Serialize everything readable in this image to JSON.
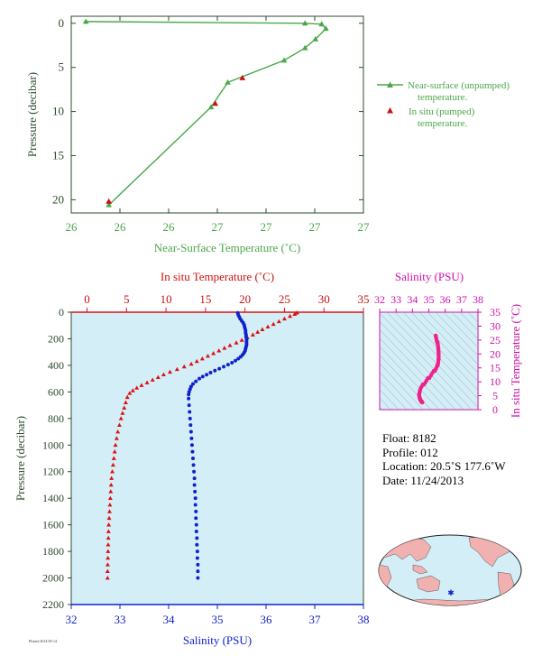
{
  "chart_data": [
    {
      "type": "line",
      "xlabel": "Near-Surface Temperature (˚C)",
      "ylabel": "Pressure (decibar)",
      "x_ticks": [
        "26",
        "26",
        "26",
        "27",
        "27",
        "27",
        "27"
      ],
      "y_ticks": [
        "0",
        "5",
        "10",
        "15",
        "20"
      ],
      "xlim": [
        25.8,
        27.2
      ],
      "ylim": [
        21.5,
        -0.8
      ],
      "legend_position": "right",
      "series": [
        {
          "name": "Near-surface (unpumped) temperature.",
          "color": "#4aa84a",
          "marker": "triangle",
          "points": [
            {
              "t": 25.98,
              "p": 20.6
            },
            {
              "t": 26.47,
              "p": 9.5
            },
            {
              "t": 26.55,
              "p": 6.7
            },
            {
              "t": 26.82,
              "p": 4.2
            },
            {
              "t": 26.92,
              "p": 2.8
            },
            {
              "t": 26.97,
              "p": 1.8
            },
            {
              "t": 27.02,
              "p": 0.6
            },
            {
              "t": 27.0,
              "p": 0.1
            },
            {
              "t": 26.92,
              "p": 0.0
            },
            {
              "t": 25.87,
              "p": -0.2
            }
          ]
        },
        {
          "name": "In situ (pumped) temperature.",
          "color": "#cc1111",
          "marker": "triangle",
          "points": [
            {
              "t": 25.98,
              "p": 20.2
            },
            {
              "t": 26.49,
              "p": 9.1
            },
            {
              "t": 26.62,
              "p": 6.2
            }
          ]
        }
      ]
    },
    {
      "type": "scatter",
      "xlabel_top": "In situ Temperature (˚C)",
      "xlabel_bottom": "Salinity (PSU)",
      "ylabel": "Pressure (decibar)",
      "temp_ticks": [
        "0",
        "5",
        "10",
        "15",
        "20",
        "25",
        "30",
        "35"
      ],
      "sal_ticks": [
        "32",
        "33",
        "34",
        "35",
        "36",
        "37",
        "38"
      ],
      "pressure_ticks": [
        "0",
        "200",
        "400",
        "600",
        "800",
        "1000",
        "1200",
        "1400",
        "1600",
        "1800",
        "2000",
        "2200"
      ],
      "temp_lim": [
        -2,
        35
      ],
      "sal_lim": [
        32,
        38
      ],
      "pressure_lim": [
        0,
        2200
      ],
      "background": "#d4eef7",
      "series": [
        {
          "name": "temperature",
          "color": "#dd1111",
          "marker": "triangle",
          "pressure": [
            5,
            15,
            30,
            50,
            70,
            90,
            110,
            130,
            150,
            170,
            190,
            210,
            230,
            250,
            270,
            290,
            310,
            330,
            350,
            370,
            390,
            410,
            430,
            450,
            470,
            490,
            510,
            530,
            550,
            570,
            590,
            610,
            640,
            680,
            720,
            760,
            800,
            850,
            900,
            950,
            1000,
            1050,
            1100,
            1150,
            1200,
            1250,
            1300,
            1350,
            1400,
            1450,
            1500,
            1550,
            1600,
            1650,
            1700,
            1750,
            1800,
            1850,
            1900,
            1950,
            2000
          ],
          "values": [
            26.6,
            26.3,
            25.7,
            25.0,
            24.3,
            23.6,
            22.9,
            22.2,
            21.6,
            21.0,
            20.3,
            19.6,
            18.9,
            18.1,
            17.4,
            16.7,
            16.0,
            15.3,
            14.6,
            13.9,
            13.2,
            12.3,
            11.4,
            10.5,
            9.7,
            9.0,
            8.3,
            7.6,
            6.9,
            6.3,
            5.8,
            5.4,
            5.1,
            4.9,
            4.7,
            4.5,
            4.3,
            4.1,
            3.9,
            3.75,
            3.6,
            3.5,
            3.4,
            3.3,
            3.2,
            3.1,
            3.05,
            3.0,
            2.95,
            2.9,
            2.85,
            2.8,
            2.75,
            2.72,
            2.7,
            2.68,
            2.66,
            2.64,
            2.62,
            2.6,
            2.6
          ]
        },
        {
          "name": "salinity",
          "color": "#1122cc",
          "marker": "dot",
          "pressure": [
            5,
            20,
            35,
            50,
            65,
            80,
            95,
            110,
            125,
            140,
            155,
            170,
            185,
            200,
            215,
            230,
            245,
            260,
            275,
            290,
            305,
            320,
            335,
            350,
            365,
            380,
            395,
            410,
            425,
            440,
            455,
            470,
            485,
            500,
            520,
            540,
            560,
            580,
            600,
            620,
            650,
            700,
            750,
            800,
            850,
            900,
            950,
            1000,
            1050,
            1100,
            1150,
            1200,
            1250,
            1300,
            1350,
            1400,
            1450,
            1500,
            1550,
            1600,
            1650,
            1700,
            1750,
            1800,
            1850,
            1900,
            1950,
            2000
          ],
          "values": [
            35.42,
            35.43,
            35.45,
            35.47,
            35.5,
            35.53,
            35.55,
            35.56,
            35.57,
            35.58,
            35.58,
            35.59,
            35.59,
            35.6,
            35.6,
            35.6,
            35.6,
            35.59,
            35.58,
            35.57,
            35.55,
            35.52,
            35.48,
            35.43,
            35.37,
            35.3,
            35.22,
            35.13,
            35.04,
            34.95,
            34.86,
            34.78,
            34.7,
            34.63,
            34.56,
            34.5,
            34.46,
            34.44,
            34.42,
            34.41,
            34.41,
            34.42,
            34.43,
            34.44,
            34.45,
            34.46,
            34.47,
            34.48,
            34.49,
            34.5,
            34.51,
            34.52,
            34.53,
            34.53,
            34.54,
            34.55,
            34.55,
            34.56,
            34.56,
            34.57,
            34.57,
            34.58,
            34.58,
            34.59,
            34.59,
            34.6,
            34.6,
            34.6
          ]
        }
      ]
    },
    {
      "type": "scatter",
      "title": "Salinity (PSU)",
      "ylabel": "In situ Temperature (˚C)",
      "sal_ticks": [
        "32",
        "33",
        "34",
        "35",
        "36",
        "37",
        "38"
      ],
      "temp_ticks": [
        "0",
        "5",
        "10",
        "15",
        "20",
        "25",
        "30",
        "35"
      ],
      "sal_lim": [
        32,
        38
      ],
      "temp_lim": [
        0,
        35
      ],
      "color": "#ee2288",
      "background": "#d4eef7"
    }
  ],
  "info": {
    "float": "Float:  8182",
    "profile": "Profile:  012",
    "location": "Location:  20.5˚S  177.6˚W",
    "date": "Date:  11/24/2013"
  },
  "footer_tiny": "Plotted 2014-05-14"
}
